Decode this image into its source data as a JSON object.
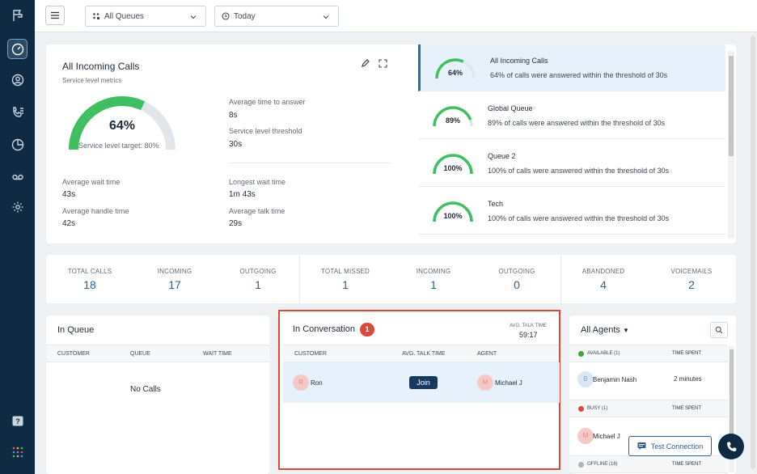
{
  "topbar": {
    "queue_select": "All Queues",
    "date_select": "Today"
  },
  "service": {
    "title": "All Incoming Calls",
    "subtitle": "Service level metrics",
    "gauge_value": 0.64,
    "gauge_pct": "64%",
    "target": "Service level target: 80%",
    "metrics": {
      "avg_answer_label": "Average time to answer",
      "avg_answer_value": "8s",
      "threshold_label": "Service level threshold",
      "threshold_value": "30s",
      "avg_wait_label": "Average wait time",
      "avg_wait_value": "43s",
      "longest_wait_label": "Longest wait time",
      "longest_wait_value": "1m 43s",
      "avg_handle_label": "Average handle time",
      "avg_handle_value": "42s",
      "avg_talk_label": "Average talk time",
      "avg_talk_value": "29s"
    }
  },
  "queues": [
    {
      "name": "All Incoming Calls",
      "pct": "64%",
      "value": 0.64,
      "desc": "64% of calls were answered within the threshold of 30s"
    },
    {
      "name": "Global Queue",
      "pct": "89%",
      "value": 0.89,
      "desc": "89% of calls were answered within the threshold of 30s"
    },
    {
      "name": "Queue 2",
      "pct": "100%",
      "value": 1.0,
      "desc": "100% of calls were answered within the threshold of 30s"
    },
    {
      "name": "Tech",
      "pct": "100%",
      "value": 1.0,
      "desc": "100% of calls were answered within the threshold of 30s"
    }
  ],
  "stats": {
    "total_calls": {
      "label": "TOTAL CALLS",
      "value": "18"
    },
    "incoming": {
      "label": "INCOMING",
      "value": "17"
    },
    "outgoing": {
      "label": "OUTGOING",
      "value": "1"
    },
    "total_missed": {
      "label": "TOTAL MISSED",
      "value": "1"
    },
    "missed_incoming": {
      "label": "INCOMING",
      "value": "1"
    },
    "missed_outgoing": {
      "label": "OUTGOING",
      "value": "0"
    },
    "abandoned": {
      "label": "ABANDONED",
      "value": "4"
    },
    "voicemails": {
      "label": "VOICEMAILS",
      "value": "2"
    }
  },
  "in_queue": {
    "title": "In Queue",
    "col_customer": "CUSTOMER",
    "col_queue": "QUEUE",
    "col_wait": "WAIT TIME",
    "empty": "No Calls"
  },
  "conversation": {
    "title": "In Conversation",
    "count": "1",
    "avg_label": "AVG. TALK TIME",
    "avg_value": "59:17",
    "col_customer": "CUSTOMER",
    "col_avg": "AVG. TALK TIME",
    "col_agent": "AGENT",
    "row": {
      "customer_initial": "R",
      "customer": "Ron",
      "join": "Join",
      "agent_initial": "M",
      "agent": "Michael J"
    }
  },
  "agents": {
    "title": "All Agents",
    "available": "AVAILABLE (1)",
    "busy": "BUSY (1)",
    "offline": "OFFLINE (16)",
    "time_spent": "TIME SPENT",
    "available_agent_initial": "B",
    "available_agent": "Benjamin Nash",
    "available_time": "2 minutes",
    "busy_agent_initial": "M",
    "busy_agent": "Michael J",
    "colors": {
      "available": "#3fa535",
      "busy": "#d94a3a",
      "offline": "#b0b6bd"
    }
  },
  "footer": {
    "test_connection": "Test Connection"
  },
  "colors": {
    "gauge_fill": "#3fbf5f",
    "gauge_track": "#e2e6ea",
    "accent": "#2d5f99",
    "sidebar": "#0f2a43"
  }
}
